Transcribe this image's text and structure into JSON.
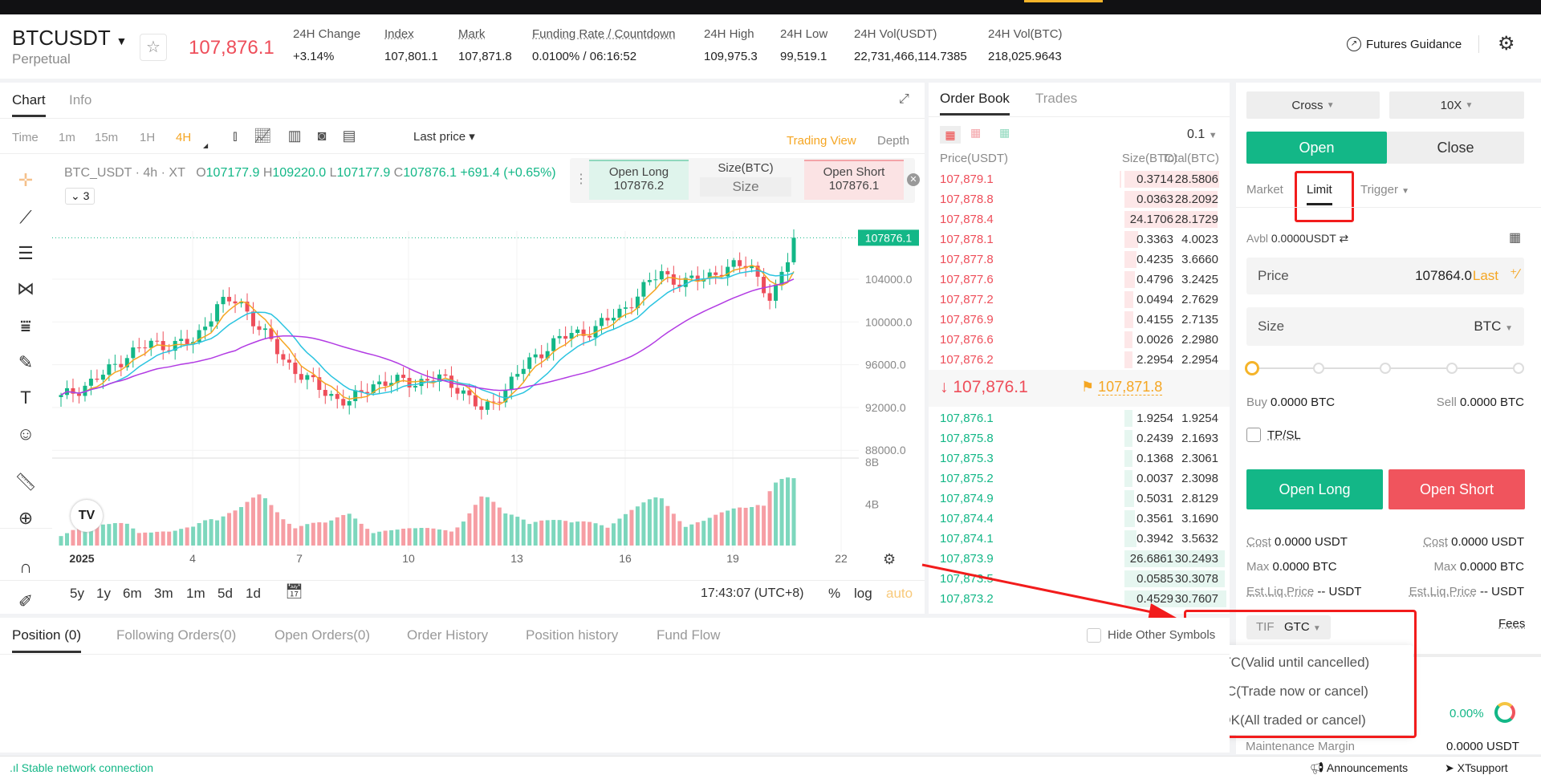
{
  "header": {
    "symbol": "BTCUSDT",
    "contract_type": "Perpetual",
    "last_price": "107,876.1",
    "stats": [
      {
        "label": "24H Change",
        "value": "+3.14%"
      },
      {
        "label": "Index",
        "value": "107,801.1"
      },
      {
        "label": "Mark",
        "value": "107,871.8"
      },
      {
        "label": "Funding Rate / Countdown",
        "value": "0.0100%",
        "value2": " / 06:16:52"
      },
      {
        "label": "24H High",
        "value": "109,975.3"
      },
      {
        "label": "24H Low",
        "value": "99,519.1"
      },
      {
        "label": "24H Vol(USDT)",
        "value": "22,731,466,114.7385"
      },
      {
        "label": "24H Vol(BTC)",
        "value": "218,025.9643"
      }
    ],
    "futures_guidance": "Futures Guidance"
  },
  "chart_panel": {
    "tabs": [
      "Chart",
      "Info"
    ],
    "intervals": [
      "Time",
      "1m",
      "15m",
      "1H",
      "4H"
    ],
    "active_interval": "4H",
    "price_type": "Last price",
    "views": [
      "Trading View",
      "Depth"
    ],
    "legend": {
      "pair": "BTC_USDT · 4h · XT",
      "o": "107177.9",
      "h": "109220.0",
      "l": "107177.9",
      "c": "107876.1",
      "chg": "+691.4 (+0.65%)",
      "indicators_count": "3"
    },
    "quick_trade": {
      "long_label": "Open Long",
      "long_price": "107876.2",
      "size_label": "Size(BTC)",
      "size_placeholder": "Size",
      "short_label": "Open Short",
      "short_price": "107876.1"
    },
    "ranges": [
      "5y",
      "1y",
      "6m",
      "3m",
      "1m",
      "5d",
      "1d"
    ],
    "clock": "17:43:07 (UTC+8)",
    "scale_opts": [
      "%",
      "log",
      "auto"
    ]
  },
  "chart_data": {
    "type": "candlestick",
    "interval": "4h",
    "y_ticks": [
      104000,
      100000,
      96000,
      92000,
      88000
    ],
    "ylim": [
      86000,
      110500
    ],
    "x_ticks": [
      "2025",
      "4",
      "7",
      "10",
      "13",
      "16",
      "19",
      "22"
    ],
    "last_price_label": "107876.1",
    "volume_ticks": [
      "8B",
      "4B"
    ],
    "closes": [
      92870,
      93980,
      95170,
      97000,
      97900,
      97900,
      98100,
      101600,
      102000,
      99300,
      96550,
      94700,
      93300,
      92400,
      94250,
      94400,
      94400,
      94700,
      93800,
      91500,
      93800,
      96100,
      97900,
      98850,
      99300,
      100700,
      102500,
      104800,
      103400,
      104400,
      104800,
      105700,
      101600,
      107876
    ],
    "volume_b": [
      1.5,
      2,
      1.8,
      2.5,
      1.5,
      1.2,
      1.8,
      4,
      3.5,
      4.5,
      3,
      2.5,
      2,
      3,
      2,
      1.5,
      1.5,
      1.8,
      2.5,
      4.5,
      3,
      3.5,
      2.5,
      2,
      2.5,
      3,
      3.5,
      4.5,
      3,
      2.5,
      3,
      4,
      7.5,
      6
    ],
    "colors": {
      "up": "#13b787",
      "down": "#ee4e5a",
      "ma_fast": "#f5a623",
      "ma_mid": "#2bc4e0",
      "ma_slow": "#b23be3"
    }
  },
  "order_book": {
    "tabs": [
      "Order Book",
      "Trades"
    ],
    "precision": "0.1",
    "headers": [
      "Price(USDT)",
      "Size(BTC)",
      "Total(BTC)"
    ],
    "asks": [
      [
        "107,879.1",
        "0.3714",
        "28.5806"
      ],
      [
        "107,878.8",
        "0.0363",
        "28.2092"
      ],
      [
        "107,878.4",
        "24.1706",
        "28.1729"
      ],
      [
        "107,878.1",
        "0.3363",
        "4.0023"
      ],
      [
        "107,877.8",
        "0.4235",
        "3.6660"
      ],
      [
        "107,877.6",
        "0.4796",
        "3.2425"
      ],
      [
        "107,877.2",
        "0.0494",
        "2.7629"
      ],
      [
        "107,876.9",
        "0.4155",
        "2.7135"
      ],
      [
        "107,876.6",
        "0.0026",
        "2.2980"
      ],
      [
        "107,876.2",
        "2.2954",
        "2.2954"
      ]
    ],
    "last": "107,876.1",
    "mark": "107,871.8",
    "bids": [
      [
        "107,876.1",
        "1.9254",
        "1.9254"
      ],
      [
        "107,875.8",
        "0.2439",
        "2.1693"
      ],
      [
        "107,875.3",
        "0.1368",
        "2.3061"
      ],
      [
        "107,875.2",
        "0.0037",
        "2.3098"
      ],
      [
        "107,874.9",
        "0.5031",
        "2.8129"
      ],
      [
        "107,874.4",
        "0.3561",
        "3.1690"
      ],
      [
        "107,874.1",
        "0.3942",
        "3.5632"
      ],
      [
        "107,873.9",
        "26.6861",
        "30.2493"
      ],
      [
        "107,873.5",
        "0.0585",
        "30.3078"
      ],
      [
        "107,873.2",
        "0.4529",
        "30.7607"
      ]
    ]
  },
  "order_form": {
    "margin_mode": "Cross",
    "leverage": "10X",
    "open": "Open",
    "close": "Close",
    "order_types": [
      "Market",
      "Limit",
      "Trigger"
    ],
    "active_type": "Limit",
    "avbl_label": "Avbl",
    "avbl": "0.0000USDT",
    "price_label": "Price",
    "price_value": "107864.0",
    "price_last": "Last",
    "size_label": "Size",
    "size_unit": "BTC",
    "slider_percent": 0,
    "buy": "Buy",
    "buy_val": "0.0000 BTC",
    "sell": "Sell",
    "sell_val": "0.0000 BTC",
    "tpsl": "TP/SL",
    "open_long": "Open Long",
    "open_short": "Open Short",
    "cost_label": "Cost",
    "cost_long": "0.0000 USDT",
    "cost_short": "0.0000 USDT",
    "max_label": "Max",
    "max_long": "0.0000 BTC",
    "max_short": "0.0000 BTC",
    "liq_label": "Est.Liq.Price",
    "liq_long": "-- USDT",
    "liq_short": "-- USDT",
    "tif_label": "TIF",
    "tif_value": "GTC",
    "fees": "Fees",
    "tif_options": [
      "GTC(Valid until cancelled)",
      "IOC(Trade now or cancel)",
      "FOK(All traded or cancel)"
    ],
    "margin_ratio": "0.00%",
    "maint_label": "Maintenance Margin",
    "maint_value": "0.0000 USDT"
  },
  "bottom": {
    "tabs": [
      "Position (0)",
      "Following Orders(0)",
      "Open Orders(0)",
      "Order History",
      "Position history",
      "Fund Flow"
    ],
    "hide_other": "Hide Other Symbols"
  },
  "footer": {
    "network": "Stable network connection",
    "announcements": "Announcements",
    "support": "XTsupport"
  },
  "annotation_color": "#f21c1c"
}
